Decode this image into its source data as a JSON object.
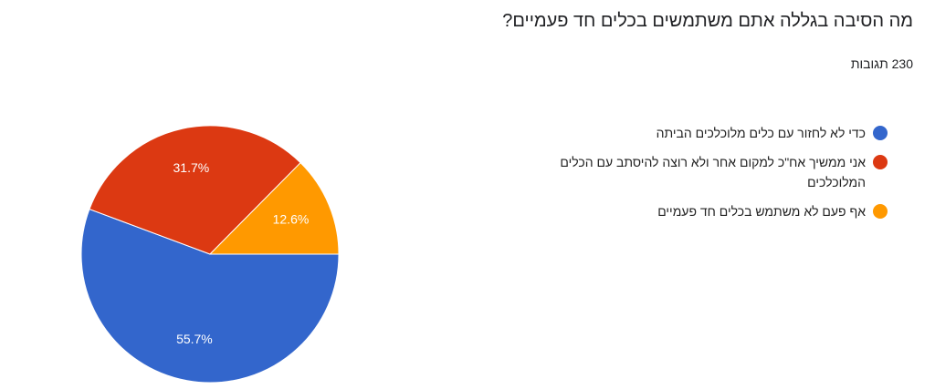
{
  "chart_data": {
    "type": "pie",
    "title": "מה הסיבה בגללה אתם משתמשים בכלים חד פעמיים?",
    "subtitle": "230 תגובות",
    "categories": [
      "כדי לא לחזור עם כלים מלוכלכים הביתה",
      "אני ממשיך אח\"כ למקום אחר ולא רוצה להיסתב עם הכלים המלוכלכים",
      "אף פעם לא משתמש בכלים חד פעמיים"
    ],
    "values": [
      55.7,
      31.7,
      12.6
    ],
    "value_labels": [
      "55.7%",
      "31.7%",
      "12.6%"
    ],
    "colors": [
      "#3366cc",
      "#dc3912",
      "#ff9900"
    ],
    "legend": "right"
  }
}
